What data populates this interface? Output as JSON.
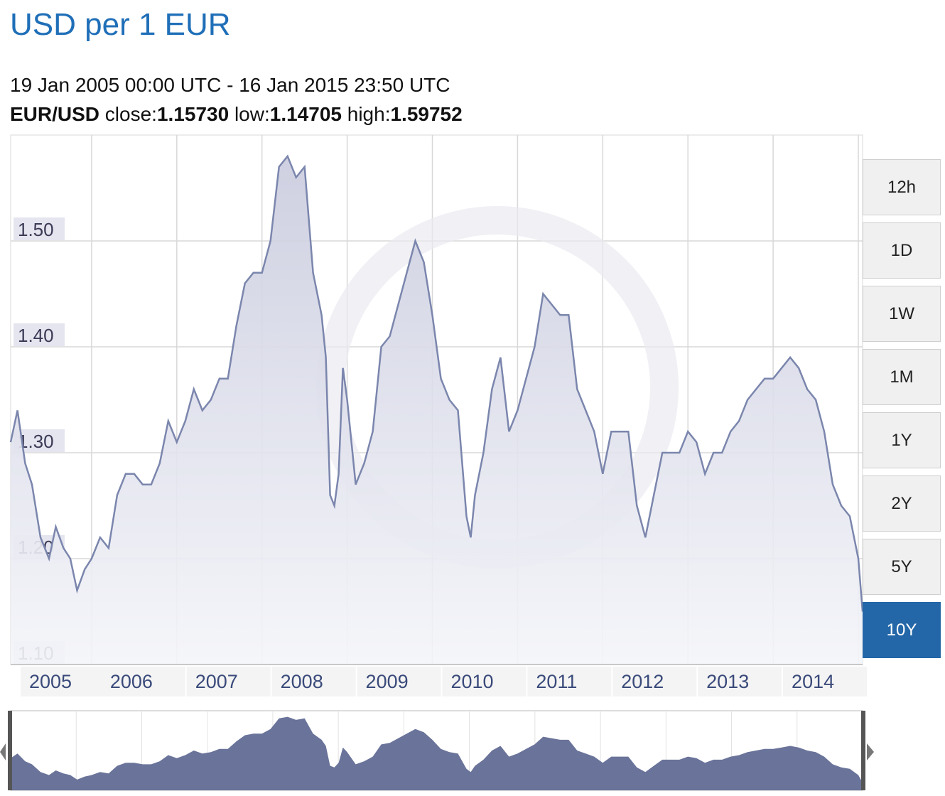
{
  "header": {
    "title": "USD per 1 EUR",
    "range": "19 Jan 2005 00:00 UTC - 16 Jan 2015 23:50 UTC",
    "pair": "EUR/USD",
    "close_label": "close:",
    "close": "1.15730",
    "low_label": "low:",
    "low": "1.14705",
    "high_label": "high:",
    "high": "1.59752"
  },
  "range_buttons": [
    {
      "label": "12h",
      "active": false
    },
    {
      "label": "1D",
      "active": false
    },
    {
      "label": "1W",
      "active": false
    },
    {
      "label": "1M",
      "active": false
    },
    {
      "label": "1Y",
      "active": false
    },
    {
      "label": "2Y",
      "active": false
    },
    {
      "label": "5Y",
      "active": false
    },
    {
      "label": "10Y",
      "active": true
    }
  ],
  "colors": {
    "line": "#7b86ad",
    "area": "#dfe1ec",
    "navigator_fill": "#6a7399",
    "grid": "#d8d8d8",
    "active_button": "#2467a8",
    "title": "#1f6fb8"
  },
  "chart_data": {
    "type": "area",
    "title": "USD per 1 EUR",
    "xlabel": "",
    "ylabel": "",
    "ylim": [
      1.1,
      1.6
    ],
    "xlim": [
      2005.05,
      2015.05
    ],
    "y_ticks": [
      "1.10",
      "1.20",
      "1.30",
      "1.40",
      "1.50"
    ],
    "x_ticks": [
      "2005",
      "2006",
      "2007",
      "2008",
      "2009",
      "2010",
      "2011",
      "2012",
      "2013",
      "2014"
    ],
    "grid": true,
    "series": [
      {
        "x": [
          2005.05,
          2005.13,
          2005.22,
          2005.3,
          2005.4,
          2005.5,
          2005.58,
          2005.67,
          2005.75,
          2005.83,
          2005.92,
          2006.0,
          2006.1,
          2006.2,
          2006.3,
          2006.4,
          2006.5,
          2006.6,
          2006.7,
          2006.8,
          2006.9,
          2007.0,
          2007.1,
          2007.2,
          2007.3,
          2007.4,
          2007.5,
          2007.6,
          2007.7,
          2007.8,
          2007.9,
          2008.0,
          2008.1,
          2008.2,
          2008.3,
          2008.4,
          2008.5,
          2008.6,
          2008.7,
          2008.75,
          2008.8,
          2008.85,
          2008.9,
          2008.95,
          2009.0,
          2009.1,
          2009.2,
          2009.3,
          2009.4,
          2009.5,
          2009.6,
          2009.7,
          2009.8,
          2009.9,
          2010.0,
          2010.1,
          2010.2,
          2010.3,
          2010.4,
          2010.45,
          2010.5,
          2010.6,
          2010.7,
          2010.8,
          2010.9,
          2011.0,
          2011.1,
          2011.2,
          2011.3,
          2011.4,
          2011.5,
          2011.6,
          2011.7,
          2011.8,
          2011.9,
          2012.0,
          2012.1,
          2012.2,
          2012.3,
          2012.4,
          2012.5,
          2012.6,
          2012.7,
          2012.8,
          2012.9,
          2013.0,
          2013.1,
          2013.2,
          2013.3,
          2013.4,
          2013.5,
          2013.6,
          2013.7,
          2013.8,
          2013.9,
          2014.0,
          2014.1,
          2014.2,
          2014.3,
          2014.4,
          2014.5,
          2014.6,
          2014.7,
          2014.8,
          2014.9,
          2015.0,
          2015.05
        ],
        "y": [
          1.31,
          1.34,
          1.29,
          1.27,
          1.22,
          1.2,
          1.23,
          1.21,
          1.2,
          1.17,
          1.19,
          1.2,
          1.22,
          1.21,
          1.26,
          1.28,
          1.28,
          1.27,
          1.27,
          1.29,
          1.33,
          1.31,
          1.33,
          1.36,
          1.34,
          1.35,
          1.37,
          1.37,
          1.42,
          1.46,
          1.47,
          1.47,
          1.5,
          1.57,
          1.58,
          1.56,
          1.57,
          1.47,
          1.43,
          1.39,
          1.26,
          1.25,
          1.28,
          1.38,
          1.35,
          1.27,
          1.29,
          1.32,
          1.4,
          1.41,
          1.44,
          1.47,
          1.5,
          1.48,
          1.43,
          1.37,
          1.35,
          1.34,
          1.24,
          1.22,
          1.26,
          1.3,
          1.36,
          1.39,
          1.32,
          1.34,
          1.37,
          1.4,
          1.45,
          1.44,
          1.43,
          1.43,
          1.36,
          1.34,
          1.32,
          1.28,
          1.32,
          1.32,
          1.32,
          1.25,
          1.22,
          1.26,
          1.3,
          1.3,
          1.3,
          1.32,
          1.31,
          1.28,
          1.3,
          1.3,
          1.32,
          1.33,
          1.35,
          1.36,
          1.37,
          1.37,
          1.38,
          1.39,
          1.38,
          1.36,
          1.35,
          1.32,
          1.27,
          1.25,
          1.24,
          1.2,
          1.15
        ]
      }
    ]
  }
}
